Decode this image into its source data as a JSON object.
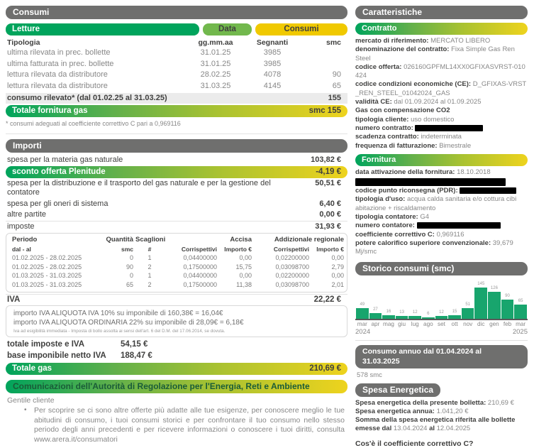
{
  "colors": {
    "brand_green": "#00a45c",
    "brand_yellow": "#eed31d",
    "pill_gray": "#6f6f6e",
    "bar_green": "#18a56d",
    "text_dark": "#3f3f3e",
    "text_gray": "#878787",
    "row_gray_bg": "#ebebeb",
    "comm_text": "#1a5c38",
    "data_pill": "#72b84d",
    "consumi_pill": "#f0c900"
  },
  "consumi": {
    "header": "Consumi",
    "letture_label": "Letture",
    "data_label": "Data",
    "consumi_label": "Consumi",
    "col_tipologia": "Tipologia",
    "col_data": "gg.mm.aa",
    "col_segnanti": "Segnanti",
    "col_smc": "smc",
    "rows": [
      {
        "tipologia": "ultima rilevata in prec. bollette",
        "data": "31.01.25",
        "segnanti": "3985",
        "smc": ""
      },
      {
        "tipologia": "ultima fatturata in prec. bollette",
        "data": "31.01.25",
        "segnanti": "3985",
        "smc": ""
      },
      {
        "tipologia": "lettura rilevata da distributore",
        "data": "28.02.25",
        "segnanti": "4078",
        "smc": "90"
      },
      {
        "tipologia": "lettura rilevata da distributore",
        "data": "31.03.25",
        "segnanti": "4145",
        "smc": "65"
      }
    ],
    "consumo_rilevato_label": "consumo rilevato* (dal 01.02.25 al 31.03.25)",
    "consumo_rilevato_value": "155",
    "totale_label": "Totale fornitura gas",
    "totale_value": "smc 155",
    "footnote": "* consumi adeguati al coefficiente correttivo C pari a 0,969116"
  },
  "importi": {
    "header": "Importi",
    "materia": {
      "label": "spesa per la materia gas naturale",
      "value": "103,82 €"
    },
    "sconto": {
      "label": "sconto offerta Plenitude",
      "value": "-4,19 €"
    },
    "distribuzione": {
      "label": "spesa per la distribuzione e il trasporto del gas naturale e per la gestione del contatore",
      "value": "50,51 €"
    },
    "oneri": {
      "label": "spesa per gli oneri di sistema",
      "value": "6,40 €"
    },
    "altre": {
      "label": "altre partite",
      "value": "0,00 €"
    },
    "imposte": {
      "label": "imposte",
      "value": "31,93 €"
    },
    "tax_table": {
      "h_periodo": "Periodo",
      "h_quantita": "Quantità",
      "h_scaglioni": "Scaglioni",
      "h_accisa": "Accisa",
      "h_addizionale": "Addizionale regionale",
      "sh_dal": "dal - al",
      "sh_smc": "smc",
      "sh_num": "#",
      "sh_corr1": "Corrispettivi",
      "sh_imp1": "Importo €",
      "sh_corr2": "Corrispettivi",
      "sh_imp2": "Importo €",
      "rows": [
        {
          "periodo": "01.02.2025 - 28.02.2025",
          "qta": "0",
          "sc": "1",
          "corr1": "0,04400000",
          "imp1": "0,00",
          "corr2": "0,02200000",
          "imp2": "0,00"
        },
        {
          "periodo": "01.02.2025 - 28.02.2025",
          "qta": "90",
          "sc": "2",
          "corr1": "0,17500000",
          "imp1": "15,75",
          "corr2": "0,03098700",
          "imp2": "2,79"
        },
        {
          "periodo": "01.03.2025 - 31.03.2025",
          "qta": "0",
          "sc": "1",
          "corr1": "0,04400000",
          "imp1": "0,00",
          "corr2": "0,02200000",
          "imp2": "0,00"
        },
        {
          "periodo": "01.03.2025 - 31.03.2025",
          "qta": "65",
          "sc": "2",
          "corr1": "0,17500000",
          "imp1": "11,38",
          "corr2": "0,03098700",
          "imp2": "2,01"
        }
      ]
    },
    "iva": {
      "label": "IVA",
      "value": "22,22 €",
      "note1": "importo IVA ALIQUOTA IVA 10% su imponibile di 160,38€ = 16,04€",
      "note2": "importo IVA ALIQUOTA ORDINARIA 22% su imponibile di 28,09€ = 6,18€",
      "fine_print": "Iva ad esigibilità immediata - Imposta di bollo assolta ai sensi dell'art. 6 del D.M. del 17.06.2014, se dovuta."
    },
    "totale_imposte": {
      "label": "totale imposte e IVA",
      "value": "54,15 €"
    },
    "base_imponibile": {
      "label": "base imponibile netto IVA",
      "value": "188,47 €"
    },
    "totale_gas": {
      "label": "Totale gas",
      "value": "210,69 €"
    }
  },
  "comunicazioni": {
    "header": "Comunicazioni dell'Autorità di Regolazione per l'Energia, Reti e Ambiente",
    "greeting": "Gentile cliente",
    "bullet_text": "Per scoprire se ci sono altre offerte più adatte alle tue esigenze, per conoscere meglio le tue abitudini di consumo, i tuoi consumi storici e per confrontare il tuo consumo nello stesso periodo degli anni precedenti e per ricevere informazioni o conoscere i tuoi diritti, consulta ",
    "bullet_link": "www.arera.it/consumatori"
  },
  "caratteristiche": {
    "header": "Caratteristiche",
    "contratto": {
      "header": "Contratto",
      "f1_label": "mercato di riferimento:",
      "f1_value": "MERCATO LIBERO",
      "f2_label": "denominazione del contratto:",
      "f2_value": "Fixa Simple Gas Ren Steel",
      "f3_label": "codice offerta:",
      "f3_value": "026160GPFML14XX0GFIXASVRST-010424",
      "f4_label": "codice condizioni economiche (CE):",
      "f4_value": "D_GFIXAS-VRST_REN_STEEL_01042024_GAS",
      "f5_label": "validità CE:",
      "f5_value": "dal 01.09.2024 al 01.09.2025",
      "f6_label": "Gas con compensazione CO2",
      "f7_label": "tipologia cliente:",
      "f7_value": "uso domestico",
      "f8_label": "numero contratto:",
      "f9_label": "scadenza contratto:",
      "f9_value": "indeterminata",
      "f10_label": "frequenza di fatturazione:",
      "f10_value": "Bimestrale"
    },
    "fornitura": {
      "header": "Fornitura",
      "g1_label": "data attivazione della fornitura:",
      "g1_value": "18.10.2018",
      "g2_label": "codice punto riconsegna (PDR):",
      "g3_label": "tipologia d'uso:",
      "g3_value": "acqua calda sanitaria e/o cottura cibi abitazione + riscaldamento",
      "g4_label": "tipologia contatore:",
      "g4_value": "G4",
      "g5_label": "numero contatore:",
      "g6_label": "coefficiente correttivo C:",
      "g6_value": "0,969116",
      "g7_label": "potere calorifico superiore convenzionale:",
      "g7_value": "39,679 Mj/smc"
    }
  },
  "chart_data": {
    "type": "bar",
    "title": "Storico consumi (smc)",
    "categories": [
      "mar",
      "apr",
      "mag",
      "giu",
      "lug",
      "ago",
      "set",
      "ott",
      "nov",
      "dic",
      "gen",
      "feb",
      "mar"
    ],
    "values": [
      49,
      27,
      16,
      13,
      12,
      6,
      12,
      15,
      51,
      145,
      126,
      90,
      65
    ],
    "year_left": "2024",
    "year_right": "2025",
    "xlabel": "",
    "ylabel": "smc",
    "ylim": [
      0,
      145
    ],
    "grid": false,
    "legend": "none",
    "bar_color": "#18a56d",
    "data_labels": true
  },
  "consumo_annuo": {
    "header": "Consumo annuo dal 01.04.2024 al 31.03.2025",
    "value": "578 smc"
  },
  "spesa_energetica": {
    "header": "Spesa Energetica",
    "l1_label": "Spesa energetica della presente bolletta:",
    "l1_value": "210,69 €",
    "l2_label": "Spesa energetica annua:",
    "l2_value": "1.041,20 €",
    "l3a_label": "Somma della spesa energetica riferita alle bollette emesse dal",
    "l3a_value": "13.04.2024",
    "l3b_label": "al",
    "l3b_value": "12.04.2025"
  },
  "footer_question": "Cos'è il coefficiente correttivo C?"
}
